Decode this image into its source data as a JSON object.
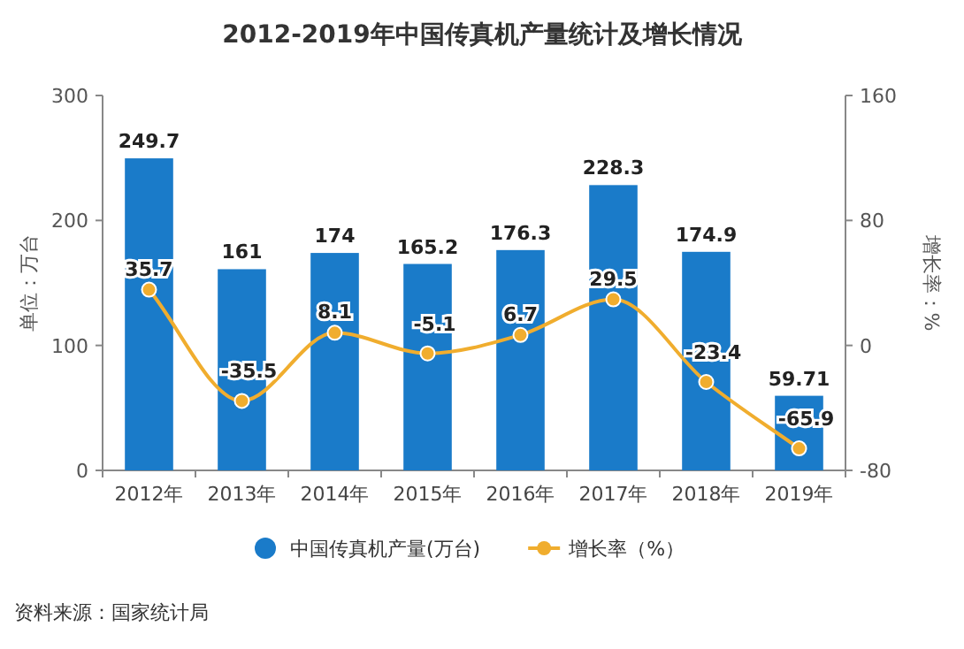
{
  "chart_data": {
    "type": "bar",
    "title": "2012-2019年中国传真机产量统计及增长情况",
    "ylabel": "单位：万台",
    "y2label": "增长率：%",
    "categories": [
      "2012年",
      "2013年",
      "2014年",
      "2015年",
      "2016年",
      "2017年",
      "2018年",
      "2019年"
    ],
    "series": [
      {
        "name": "中国传真机产量(万台)",
        "color": "#1a7bc9",
        "values": [
          249.7,
          161,
          174,
          165.2,
          176.3,
          228.3,
          174.9,
          59.71
        ]
      },
      {
        "name": "增长率（%）",
        "type": "line",
        "axis": "y2",
        "color": "#f0ad2e",
        "values": [
          35.7,
          -35.5,
          8.1,
          -5.1,
          6.7,
          29.5,
          -23.4,
          -65.9
        ]
      }
    ],
    "ylim": [
      0,
      300
    ],
    "yticks": [
      0,
      100,
      200,
      300
    ],
    "y2lim": [
      -80,
      160
    ],
    "y2ticks": [
      -80,
      0,
      80,
      160
    ],
    "marker": "circle",
    "data_labels": true,
    "legend": "bottom",
    "annotations": [
      "资料来源：国家统计局"
    ]
  }
}
